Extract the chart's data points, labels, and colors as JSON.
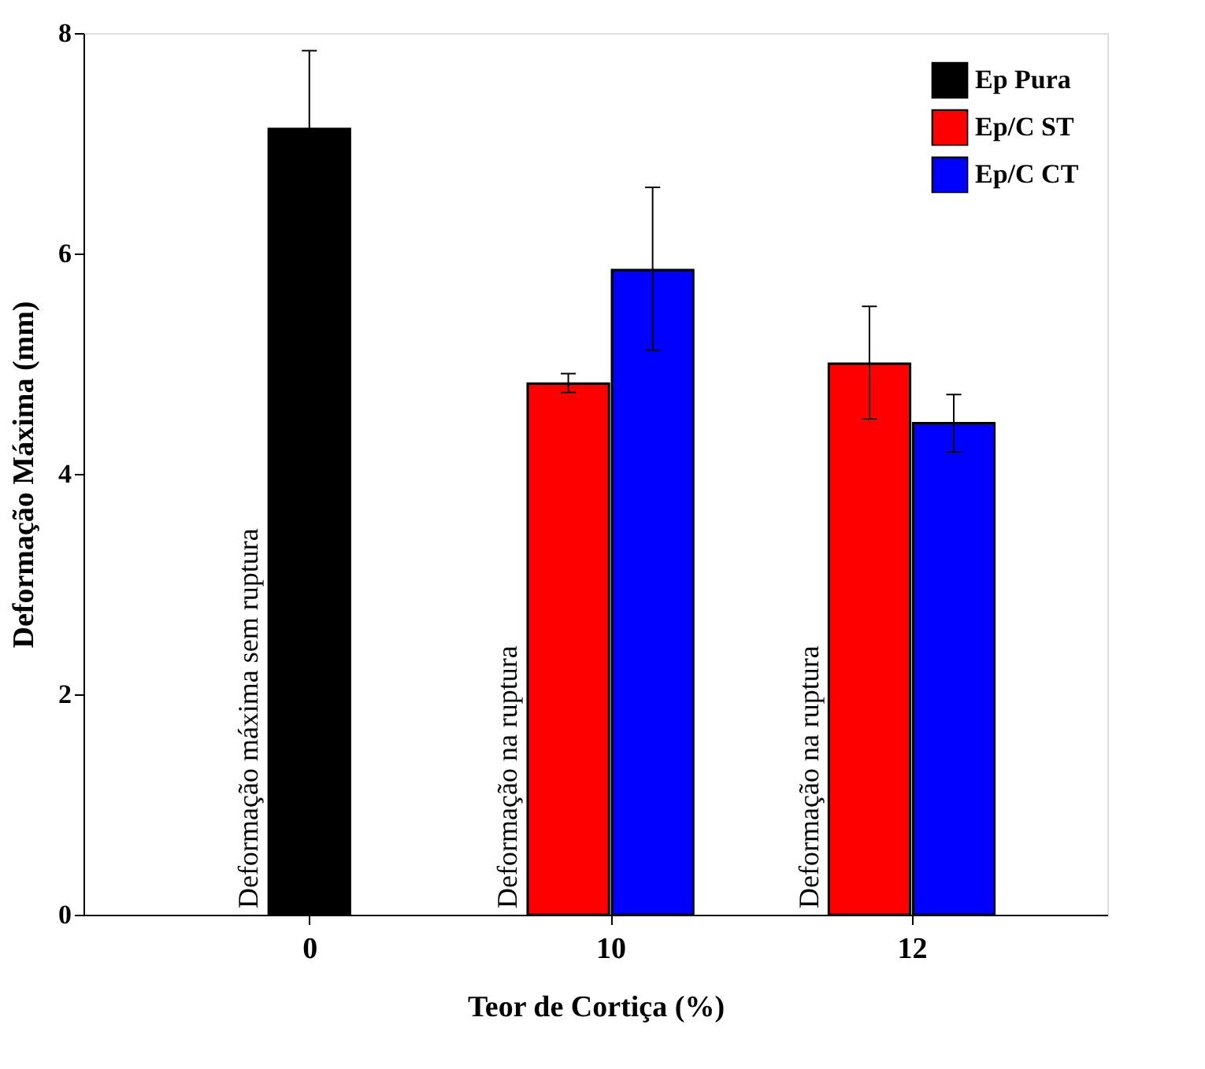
{
  "chart_data": {
    "type": "bar",
    "xlabel": "Teor de Cortiça (%)",
    "ylabel": "Deformação Máxima (mm)",
    "categories": [
      "0",
      "10",
      "12"
    ],
    "series": [
      {
        "name": "Ep Pura",
        "color": "#000000",
        "values": [
          7.13,
          null,
          null
        ],
        "errors": [
          [
            7.13,
            7.84
          ],
          null,
          null
        ]
      },
      {
        "name": "Ep/C ST",
        "color": "#ff0000",
        "values": [
          null,
          4.82,
          5.0
        ],
        "errors": [
          null,
          [
            4.74,
            4.91
          ],
          [
            4.5,
            5.52
          ]
        ]
      },
      {
        "name": "Ep/C CT",
        "color": "#0000ff",
        "values": [
          null,
          5.85,
          4.46
        ],
        "errors": [
          null,
          [
            5.12,
            6.6
          ],
          [
            4.2,
            4.72
          ]
        ]
      }
    ],
    "ylim": [
      0,
      8
    ],
    "yticks": [
      0,
      2,
      4,
      6,
      8
    ],
    "grid": false,
    "legend": "top right",
    "annotations": [
      "Deformação máxima sem ruptura",
      "Deformação na ruptura",
      "Deformação na ruptura"
    ]
  }
}
